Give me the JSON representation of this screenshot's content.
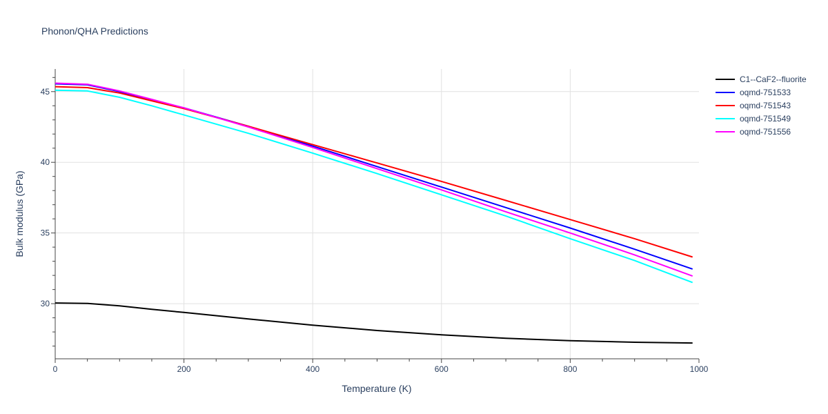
{
  "chart_data": {
    "type": "line",
    "title": "Phonon/QHA Predictions",
    "xlabel": "Temperature (K)",
    "ylabel": "Bulk modulus (GPa)",
    "xlim": [
      0,
      1000
    ],
    "ylim": [
      26.1,
      46.6
    ],
    "xticks": [
      "0",
      "200",
      "400",
      "600",
      "800",
      "1000"
    ],
    "yticks": [
      "30",
      "35",
      "40",
      "45"
    ],
    "xtick_values": [
      0,
      200,
      400,
      600,
      800,
      1000
    ],
    "ytick_values": [
      30,
      35,
      40,
      45
    ],
    "grid": true,
    "legend_position": "right",
    "x": [
      0,
      50,
      100,
      150,
      200,
      300,
      400,
      500,
      600,
      700,
      800,
      900,
      990
    ],
    "series": [
      {
        "name": "C1--CaF2--fluorite",
        "color": "#000000",
        "values": [
          30.05,
          30.02,
          29.85,
          29.6,
          29.38,
          28.92,
          28.48,
          28.1,
          27.8,
          27.55,
          27.38,
          27.27,
          27.22
        ]
      },
      {
        "name": "oqmd-751533",
        "color": "#0000ff",
        "values": [
          45.55,
          45.48,
          45.0,
          44.4,
          43.85,
          42.55,
          41.15,
          39.7,
          38.25,
          36.8,
          35.35,
          33.85,
          32.45
        ]
      },
      {
        "name": "oqmd-751543",
        "color": "#ff0000",
        "values": [
          45.35,
          45.28,
          44.9,
          44.35,
          43.8,
          42.55,
          41.25,
          39.95,
          38.65,
          37.3,
          35.95,
          34.6,
          33.3
        ]
      },
      {
        "name": "oqmd-751549",
        "color": "#00ffff",
        "values": [
          45.1,
          45.05,
          44.6,
          44.0,
          43.35,
          42.05,
          40.65,
          39.2,
          37.7,
          36.2,
          34.6,
          33.05,
          31.5
        ]
      },
      {
        "name": "oqmd-751556",
        "color": "#ff00ff",
        "values": [
          45.6,
          45.52,
          45.05,
          44.45,
          43.85,
          42.5,
          41.05,
          39.55,
          38.05,
          36.5,
          35.0,
          33.45,
          31.95
        ]
      }
    ]
  }
}
